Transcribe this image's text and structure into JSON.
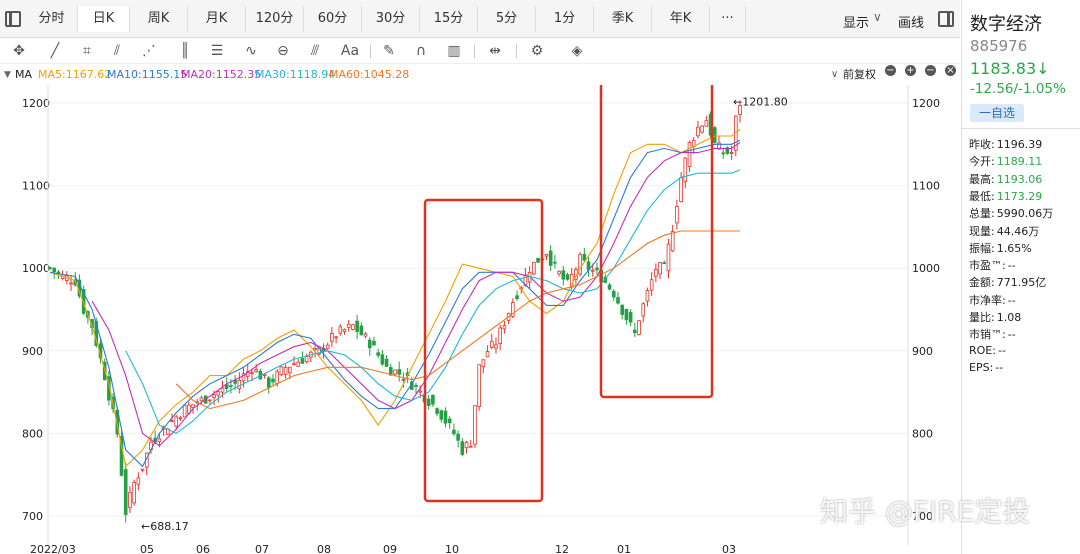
{
  "tabs": [
    "分时",
    "日K",
    "周K",
    "月K",
    "120分",
    "60分",
    "30分",
    "15分",
    "5分",
    "1分",
    "季K",
    "年K",
    "···"
  ],
  "active_tab": "日K",
  "header_right": {
    "display": "显示",
    "draw": "画线"
  },
  "ma_bar": {
    "label": "MA",
    "ma5": "MA5:1167.62",
    "ma10": "MA10:1155.15",
    "ma20": "MA20:1152.35",
    "ma30": "MA30:1118.94",
    "ma60": "MA60:1045.28",
    "adjust": "前复权"
  },
  "colors": {
    "ma5": "#f0a000",
    "ma10": "#2b7bd0",
    "ma20": "#c030c0",
    "ma30": "#20b8d8",
    "ma60": "#f07820",
    "up": "#e5332a",
    "down": "#24a045",
    "box": "#e0311f"
  },
  "stock": {
    "name": "数字经济",
    "code": "885976",
    "price": "1183.83↓",
    "change": "-12.56/-1.05%",
    "watch_btn": "一自选",
    "stats": [
      {
        "k": "昨收:",
        "v": "1196.39",
        "c": ""
      },
      {
        "k": "今开:",
        "v": "1189.11",
        "c": "green"
      },
      {
        "k": "最高:",
        "v": "1193.06",
        "c": "green"
      },
      {
        "k": "最低:",
        "v": "1173.29",
        "c": "green"
      },
      {
        "k": "总量:",
        "v": "5990.06万",
        "c": ""
      },
      {
        "k": "现量:",
        "v": "44.46万",
        "c": ""
      },
      {
        "k": "振幅:",
        "v": "1.65%",
        "c": ""
      },
      {
        "k": "市盈™:",
        "v": "--",
        "c": ""
      },
      {
        "k": "金额:",
        "v": "771.95亿",
        "c": ""
      },
      {
        "k": "市净率:",
        "v": "--",
        "c": ""
      },
      {
        "k": "量比:",
        "v": "1.08",
        "c": ""
      },
      {
        "k": "市销™:",
        "v": "--",
        "c": ""
      },
      {
        "k": "ROE:",
        "v": "--",
        "c": ""
      },
      {
        "k": "EPS:",
        "v": "--",
        "c": ""
      }
    ]
  },
  "chart_data": {
    "type": "candlestick",
    "y_ticks": [
      700,
      800,
      900,
      1000,
      1100,
      1200
    ],
    "ylim": [
      680,
      1210
    ],
    "x_labels": [
      "2022/03",
      "05",
      "06",
      "07",
      "08",
      "09",
      "10",
      "12",
      "01",
      "03"
    ],
    "annotations": {
      "high": "←1201.80",
      "low": "←688.17"
    },
    "close_path": [
      [
        0,
        1000
      ],
      [
        3,
        990
      ],
      [
        6,
        985
      ],
      [
        8,
        950
      ],
      [
        10,
        930
      ],
      [
        13,
        870
      ],
      [
        16,
        800
      ],
      [
        18,
        705
      ],
      [
        20,
        740
      ],
      [
        22,
        760
      ],
      [
        24,
        790
      ],
      [
        28,
        810
      ],
      [
        32,
        830
      ],
      [
        36,
        840
      ],
      [
        40,
        850
      ],
      [
        44,
        860
      ],
      [
        48,
        880
      ],
      [
        52,
        860
      ],
      [
        56,
        880
      ],
      [
        60,
        890
      ],
      [
        64,
        900
      ],
      [
        68,
        920
      ],
      [
        72,
        930
      ],
      [
        76,
        910
      ],
      [
        80,
        880
      ],
      [
        84,
        870
      ],
      [
        88,
        850
      ],
      [
        92,
        830
      ],
      [
        96,
        800
      ],
      [
        98,
        780
      ],
      [
        100,
        790
      ],
      [
        102,
        880
      ],
      [
        104,
        900
      ],
      [
        106,
        910
      ],
      [
        110,
        960
      ],
      [
        114,
        1000
      ],
      [
        118,
        1020
      ],
      [
        120,
        1000
      ],
      [
        123,
        980
      ],
      [
        126,
        1010
      ],
      [
        128,
        1000
      ],
      [
        131,
        990
      ],
      [
        134,
        970
      ],
      [
        137,
        940
      ],
      [
        139,
        920
      ],
      [
        140,
        940
      ],
      [
        142,
        970
      ],
      [
        144,
        1000
      ],
      [
        146,
        1000
      ],
      [
        148,
        1050
      ],
      [
        150,
        1110
      ],
      [
        152,
        1150
      ],
      [
        154,
        1170
      ],
      [
        156,
        1180
      ],
      [
        158,
        1150
      ],
      [
        160,
        1140
      ],
      [
        162,
        1140
      ],
      [
        163,
        1180
      ],
      [
        164,
        1200
      ]
    ],
    "ma_anchor_x": [
      0,
      6,
      10,
      14,
      18,
      22,
      26,
      30,
      34,
      38,
      42,
      46,
      50,
      54,
      58,
      62,
      66,
      70,
      74,
      78,
      82,
      86,
      90,
      94,
      98,
      102,
      106,
      110,
      114,
      118,
      122,
      126,
      130,
      134,
      138,
      142,
      146,
      150,
      154,
      158,
      162,
      164
    ],
    "ma5": [
      995,
      985,
      930,
      860,
      760,
      780,
      815,
      835,
      850,
      870,
      870,
      890,
      900,
      915,
      925,
      905,
      880,
      860,
      840,
      810,
      840,
      880,
      920,
      960,
      1005,
      1000,
      995,
      990,
      960,
      945,
      960,
      1000,
      1030,
      1090,
      1140,
      1150,
      1150,
      1140,
      1150,
      1160,
      1160,
      1168
    ],
    "ma10": [
      995,
      990,
      950,
      880,
      780,
      760,
      800,
      825,
      845,
      860,
      870,
      880,
      895,
      910,
      920,
      915,
      890,
      865,
      845,
      830,
      830,
      860,
      895,
      935,
      975,
      995,
      995,
      995,
      975,
      955,
      955,
      985,
      1010,
      1060,
      1110,
      1140,
      1145,
      1140,
      1145,
      1150,
      1150,
      1155
    ],
    "ma20": [
      null,
      null,
      960,
      925,
      870,
      800,
      785,
      805,
      830,
      845,
      860,
      870,
      885,
      895,
      905,
      910,
      900,
      880,
      860,
      840,
      830,
      840,
      870,
      910,
      950,
      985,
      995,
      995,
      990,
      970,
      960,
      965,
      990,
      1030,
      1075,
      1110,
      1130,
      1140,
      1140,
      1145,
      1145,
      1152
    ],
    "ma30": [
      null,
      null,
      null,
      null,
      900,
      860,
      810,
      800,
      815,
      835,
      850,
      860,
      870,
      880,
      890,
      895,
      900,
      895,
      880,
      860,
      845,
      840,
      850,
      880,
      920,
      955,
      975,
      985,
      990,
      985,
      975,
      970,
      975,
      1000,
      1035,
      1070,
      1095,
      1110,
      1115,
      1115,
      1115,
      1119
    ],
    "ma60": [
      null,
      null,
      null,
      null,
      null,
      null,
      null,
      860,
      840,
      830,
      835,
      840,
      850,
      860,
      870,
      875,
      880,
      880,
      880,
      875,
      870,
      865,
      870,
      885,
      900,
      915,
      930,
      945,
      960,
      970,
      975,
      980,
      990,
      1000,
      1015,
      1030,
      1040,
      1045,
      1045,
      1045,
      1045,
      1045
    ]
  }
}
